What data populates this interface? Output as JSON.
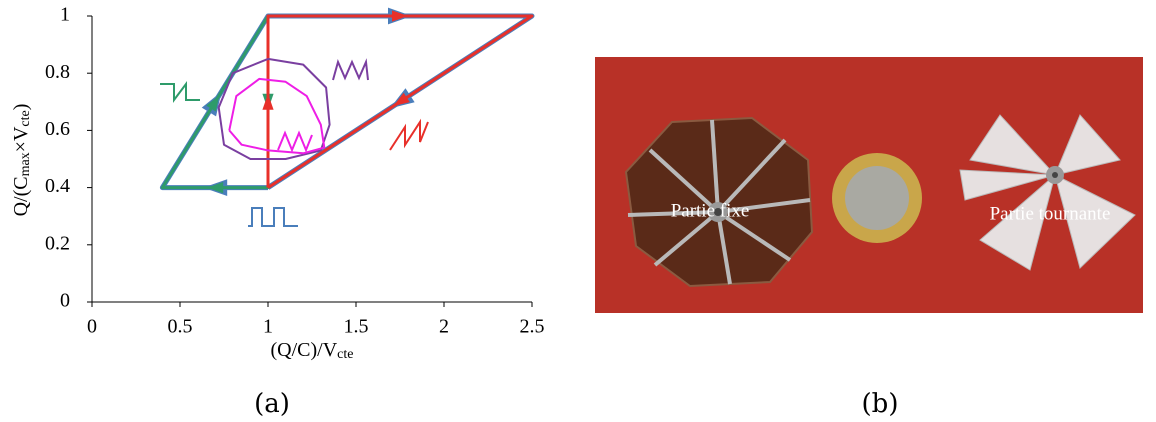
{
  "chart_data": {
    "type": "line",
    "xlabel": [
      "(Q/C)/V",
      "cte"
    ],
    "ylabel": [
      "Q/(C",
      "max",
      "×V",
      "cte",
      ")"
    ],
    "xlim": [
      0,
      2.5
    ],
    "xticks": [
      0,
      0.5,
      1,
      1.5,
      2,
      2.5
    ],
    "ylim": [
      0,
      1
    ],
    "yticks": [
      0,
      0.2,
      0.4,
      0.6,
      0.8,
      1
    ],
    "series": [
      {
        "color": "#4a7ebb",
        "x": [
          1,
          0.4,
          1,
          2.5,
          1
        ],
        "values": [
          0.4,
          0.4,
          1,
          1,
          0.4
        ]
      },
      {
        "color": "#2e9b6a",
        "x": [
          1,
          1,
          0.4,
          1
        ],
        "values": [
          1,
          0.4,
          0.4,
          1
        ]
      },
      {
        "color": "#e8302a",
        "x": [
          1,
          1,
          2.5,
          1
        ],
        "values": [
          0.4,
          1,
          1,
          0.4
        ]
      },
      {
        "color": "#7a3fa0",
        "x": [
          1,
          1.2,
          1.33,
          1.35,
          1.3,
          1.1,
          0.9,
          0.75,
          0.72,
          0.8,
          1
        ],
        "values": [
          0.85,
          0.83,
          0.75,
          0.62,
          0.53,
          0.5,
          0.5,
          0.55,
          0.68,
          0.8,
          0.85
        ]
      },
      {
        "color": "#ee1ee6",
        "x": [
          0.78,
          0.82,
          0.95,
          1.1,
          1.22,
          1.3,
          1.32,
          1.2,
          1,
          0.85,
          0.78
        ],
        "values": [
          0.6,
          0.72,
          0.78,
          0.77,
          0.72,
          0.62,
          0.54,
          0.52,
          0.53,
          0.55,
          0.6
        ]
      }
    ]
  },
  "photo": {
    "labels": [
      "Partie fixe",
      "Partie tournante"
    ]
  },
  "captions": [
    "(a)",
    "(b)"
  ]
}
